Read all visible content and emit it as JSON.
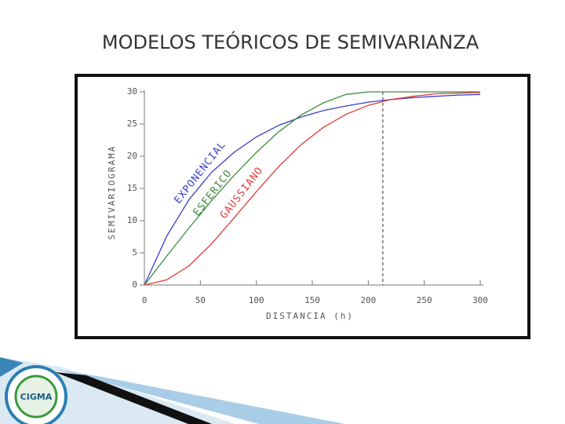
{
  "chart_data": {
    "type": "line",
    "title": "MODELOS TEÓRICOS DE SEMIVARIANZA",
    "x_label": "DISTANCIA (h)",
    "y_label": "SEMIVARIOGRAMA",
    "x": [
      0,
      20,
      40,
      60,
      80,
      100,
      120,
      140,
      160,
      180,
      200,
      220,
      240,
      260,
      280,
      300
    ],
    "series": [
      {
        "name": "EXPONENCIAL",
        "color": "#3b3fc8",
        "values": [
          0,
          7.6,
          13.3,
          17.5,
          20.6,
          23.0,
          24.8,
          26.1,
          27.1,
          27.8,
          28.4,
          28.8,
          29.1,
          29.3,
          29.5,
          29.6
        ]
      },
      {
        "name": "ESFERICO",
        "color": "#3c8c3c",
        "values": [
          0,
          4.5,
          8.9,
          13.1,
          17.0,
          20.6,
          23.8,
          26.4,
          28.3,
          29.6,
          30,
          30,
          30,
          30,
          30,
          30
        ]
      },
      {
        "name": "GAUSSIANO",
        "color": "#e03a3a",
        "values": [
          0,
          0.8,
          3.0,
          6.4,
          10.4,
          14.5,
          18.4,
          21.8,
          24.5,
          26.5,
          27.9,
          28.8,
          29.3,
          29.7,
          29.8,
          29.9
        ]
      }
    ],
    "vline": 213,
    "xlim": [
      0,
      300
    ],
    "ylim": [
      0,
      30
    ],
    "xticks": [
      0,
      50,
      100,
      150,
      200,
      250,
      300
    ],
    "yticks": [
      0,
      5,
      10,
      15,
      20,
      25,
      30
    ]
  },
  "logo": {
    "text": "CIGMA"
  }
}
